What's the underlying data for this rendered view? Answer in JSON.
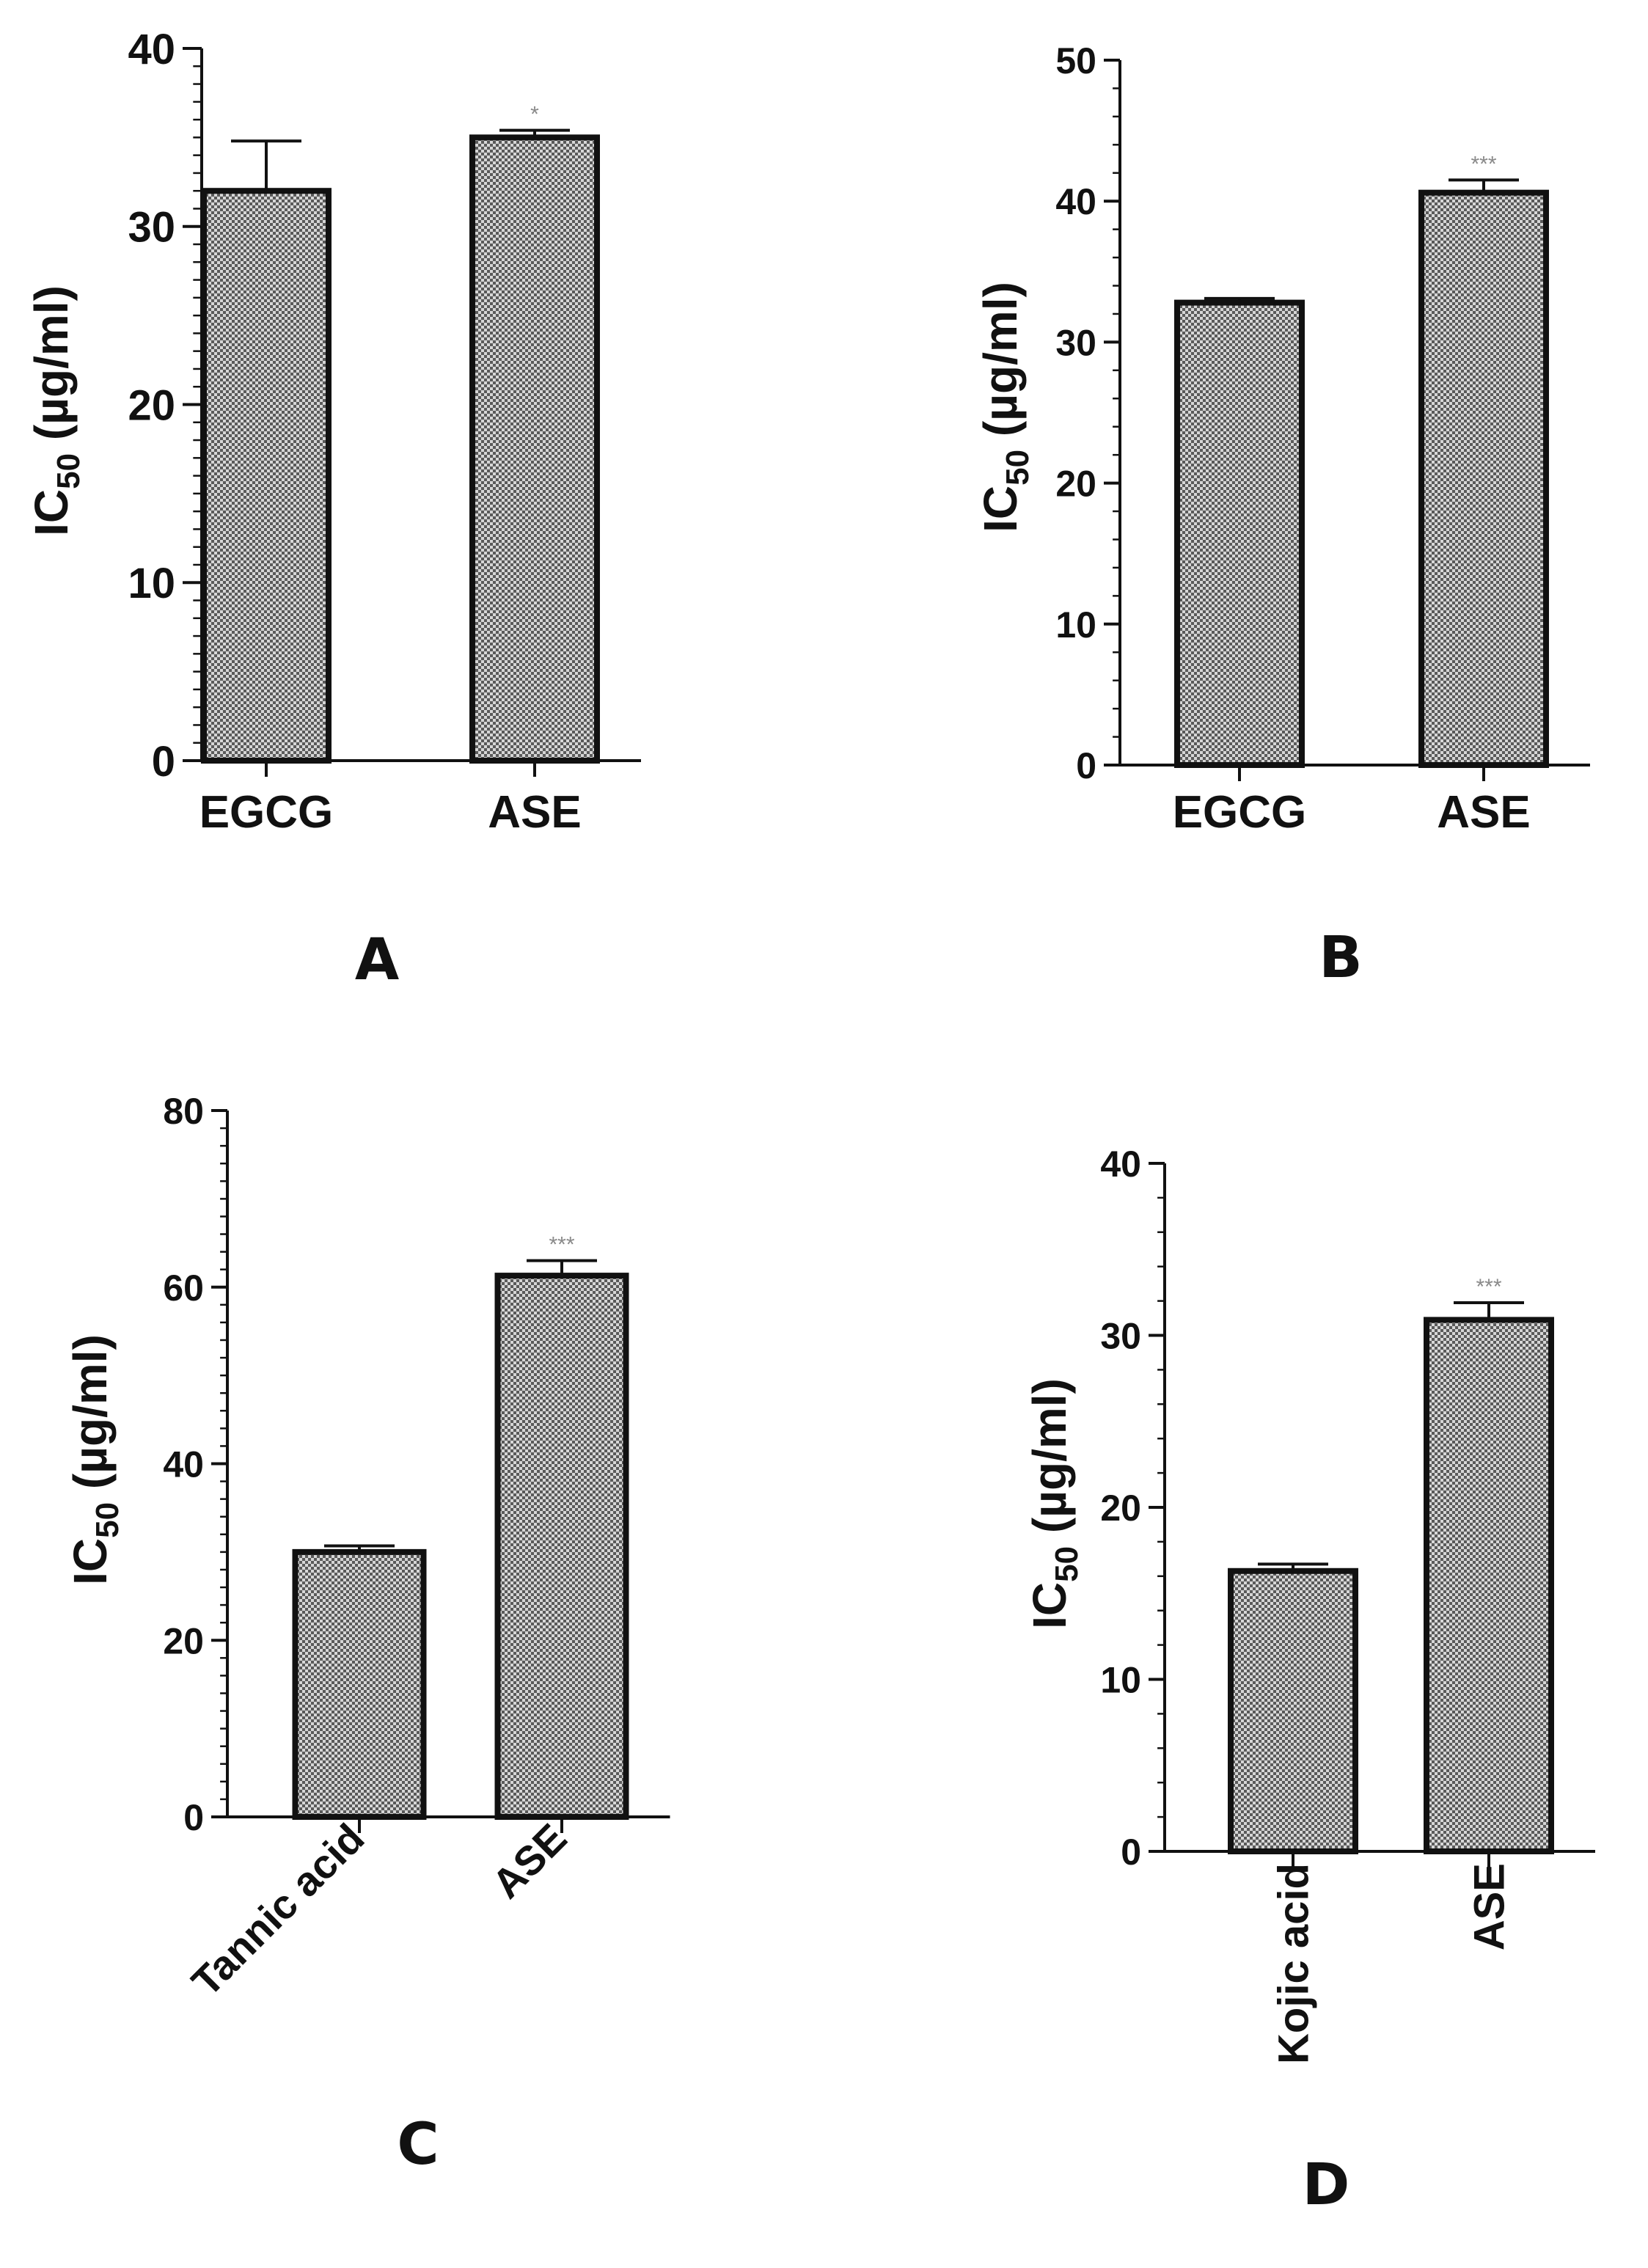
{
  "figure": {
    "colors": {
      "bar_fill": "#8f8f8f",
      "pattern_dark": "#5a5a5a",
      "pattern_light": "#d6d6d6",
      "axis": "#111111",
      "significance": "#8a8a8a"
    }
  },
  "chart_data": [
    {
      "panel": "A",
      "type": "bar",
      "title": "",
      "xlabel": "",
      "ylabel": "IC",
      "ylabel_sub": "50",
      "ylabel_unit": " (µg/ml)",
      "categories": [
        "EGCG",
        "ASE"
      ],
      "values": [
        32,
        35
      ],
      "errors": [
        2.8,
        0.4
      ],
      "significance": [
        "",
        "*"
      ],
      "ylim": [
        0,
        40
      ],
      "yticks": [
        0,
        10,
        20,
        30,
        40
      ],
      "tick_labels": [
        "0",
        "10",
        "20",
        "30",
        "40"
      ],
      "xtick_rotation": 0,
      "grid": false
    },
    {
      "panel": "B",
      "type": "bar",
      "title": "",
      "xlabel": "",
      "ylabel": "IC",
      "ylabel_sub": "50",
      "ylabel_unit": " (µg/ml)",
      "categories": [
        "EGCG",
        "ASE"
      ],
      "values": [
        32.8,
        40.6
      ],
      "errors": [
        0.3,
        0.9
      ],
      "significance": [
        "",
        "***"
      ],
      "ylim": [
        0,
        50
      ],
      "yticks": [
        0,
        10,
        20,
        30,
        40,
        50
      ],
      "tick_labels": [
        "0",
        "10",
        "20",
        "30",
        "40",
        "50"
      ],
      "xtick_rotation": 0,
      "grid": false
    },
    {
      "panel": "C",
      "type": "bar",
      "title": "",
      "xlabel": "",
      "ylabel": "IC",
      "ylabel_sub": "50",
      "ylabel_unit": " (µg/ml)",
      "categories": [
        "Tannic acid",
        "ASE"
      ],
      "values": [
        30,
        61.3
      ],
      "errors": [
        0.7,
        1.7
      ],
      "significance": [
        "",
        "***"
      ],
      "ylim": [
        0,
        80
      ],
      "yticks": [
        0,
        20,
        40,
        60,
        80
      ],
      "tick_labels": [
        "0",
        "20",
        "40",
        "60",
        "80"
      ],
      "xtick_rotation": -45,
      "grid": false
    },
    {
      "panel": "D",
      "type": "bar",
      "title": "",
      "xlabel": "",
      "ylabel": "IC",
      "ylabel_sub": "50",
      "ylabel_unit": " (µg/ml)",
      "categories": [
        "Kojic acid",
        "ASE"
      ],
      "values": [
        16.3,
        30.9
      ],
      "errors": [
        0.4,
        1.0
      ],
      "significance": [
        "",
        "***"
      ],
      "ylim": [
        0,
        40
      ],
      "yticks": [
        0,
        10,
        20,
        30,
        40
      ],
      "tick_labels": [
        "0",
        "10",
        "20",
        "30",
        "40"
      ],
      "xtick_rotation": -90,
      "grid": false
    }
  ]
}
